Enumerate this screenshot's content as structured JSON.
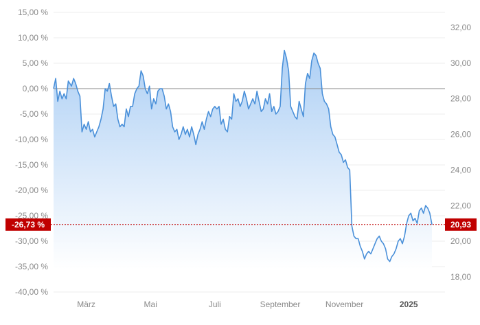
{
  "colors": {
    "line": "#4a90d9",
    "fill_top": "#a9cdf4",
    "fill_bottom": "#ffffff",
    "grid": "#ececec",
    "zero_line": "#888888",
    "current_marker": "#c00000",
    "badge_text": "#ffffff",
    "tick_text": "#8a8a8a"
  },
  "current": {
    "percent_label": "-26,73 %",
    "price_label": "20,93"
  },
  "chart_data": {
    "type": "area",
    "title": "",
    "xlabel": "",
    "ylabel_left": "",
    "ylabel_right": "",
    "y_left_range": [
      -40,
      15
    ],
    "y_right_range": [
      17.42,
      32.78
    ],
    "grid": true,
    "y_left_ticks": [
      {
        "value": 15,
        "label": "15,00 %"
      },
      {
        "value": 10,
        "label": "10,00 %"
      },
      {
        "value": 5,
        "label": "5,00 %"
      },
      {
        "value": 0,
        "label": "0,00 %"
      },
      {
        "value": -5,
        "label": "-5,00 %"
      },
      {
        "value": -10,
        "label": "-10,00 %"
      },
      {
        "value": -15,
        "label": "-15,00 %"
      },
      {
        "value": -20,
        "label": "-20,00 %"
      },
      {
        "value": -25,
        "label": "-25,00 %"
      },
      {
        "value": -30,
        "label": "-30,00 %"
      },
      {
        "value": -35,
        "label": "-35,00 %"
      },
      {
        "value": -40,
        "label": "-40,00 %"
      }
    ],
    "y_right_ticks": [
      {
        "value": 32,
        "label": "32,00"
      },
      {
        "value": 30,
        "label": "30,00"
      },
      {
        "value": 28,
        "label": "28,00"
      },
      {
        "value": 26,
        "label": "26,00"
      },
      {
        "value": 24,
        "label": "24,00"
      },
      {
        "value": 22,
        "label": "22,00"
      },
      {
        "value": 20,
        "label": "20,00"
      },
      {
        "value": 18,
        "label": "18,00"
      }
    ],
    "x_range": [
      "2024-01-30",
      "2025-01-23"
    ],
    "x_ticks": [
      {
        "date": "2024-03-01",
        "label": "März",
        "bold": false
      },
      {
        "date": "2024-05-01",
        "label": "Mai",
        "bold": false
      },
      {
        "date": "2024-07-01",
        "label": "Juli",
        "bold": false
      },
      {
        "date": "2024-09-01",
        "label": "September",
        "bold": false
      },
      {
        "date": "2024-11-01",
        "label": "November",
        "bold": false
      },
      {
        "date": "2025-01-01",
        "label": "2025",
        "bold": true
      }
    ],
    "series": [
      {
        "points": [
          [
            "2024-01-30",
            0.0
          ],
          [
            "2024-02-01",
            2.0
          ],
          [
            "2024-02-03",
            -2.5
          ],
          [
            "2024-02-05",
            -0.5
          ],
          [
            "2024-02-07",
            -2.0
          ],
          [
            "2024-02-09",
            -1.0
          ],
          [
            "2024-02-11",
            -2.0
          ],
          [
            "2024-02-13",
            1.5
          ],
          [
            "2024-02-16",
            0.5
          ],
          [
            "2024-02-18",
            2.0
          ],
          [
            "2024-02-20",
            1.0
          ],
          [
            "2024-02-22",
            -0.5
          ],
          [
            "2024-02-24",
            -1.5
          ],
          [
            "2024-02-26",
            -8.5
          ],
          [
            "2024-02-28",
            -7.0
          ],
          [
            "2024-03-01",
            -8.0
          ],
          [
            "2024-03-03",
            -6.5
          ],
          [
            "2024-03-05",
            -8.5
          ],
          [
            "2024-03-07",
            -8.0
          ],
          [
            "2024-03-09",
            -9.5
          ],
          [
            "2024-03-11",
            -8.5
          ],
          [
            "2024-03-13",
            -7.5
          ],
          [
            "2024-03-15",
            -6.0
          ],
          [
            "2024-03-17",
            -4.0
          ],
          [
            "2024-03-19",
            0.0
          ],
          [
            "2024-03-21",
            -0.5
          ],
          [
            "2024-03-23",
            1.0
          ],
          [
            "2024-03-25",
            -1.5
          ],
          [
            "2024-03-27",
            -3.5
          ],
          [
            "2024-03-29",
            -3.0
          ],
          [
            "2024-03-31",
            -6.0
          ],
          [
            "2024-04-02",
            -7.5
          ],
          [
            "2024-04-04",
            -7.0
          ],
          [
            "2024-04-06",
            -7.5
          ],
          [
            "2024-04-08",
            -4.0
          ],
          [
            "2024-04-10",
            -5.5
          ],
          [
            "2024-04-12",
            -3.5
          ],
          [
            "2024-04-14",
            -3.5
          ],
          [
            "2024-04-16",
            -1.0
          ],
          [
            "2024-04-18",
            0.0
          ],
          [
            "2024-04-20",
            0.5
          ],
          [
            "2024-04-22",
            3.5
          ],
          [
            "2024-04-24",
            2.5
          ],
          [
            "2024-04-26",
            0.0
          ],
          [
            "2024-04-28",
            -1.0
          ],
          [
            "2024-04-30",
            0.5
          ],
          [
            "2024-05-02",
            -4.0
          ],
          [
            "2024-05-04",
            -2.0
          ],
          [
            "2024-05-06",
            -3.0
          ],
          [
            "2024-05-08",
            -0.5
          ],
          [
            "2024-05-10",
            0.0
          ],
          [
            "2024-05-12",
            0.0
          ],
          [
            "2024-05-14",
            -1.5
          ],
          [
            "2024-05-16",
            -4.0
          ],
          [
            "2024-05-18",
            -3.0
          ],
          [
            "2024-05-20",
            -4.5
          ],
          [
            "2024-05-22",
            -7.5
          ],
          [
            "2024-05-24",
            -8.5
          ],
          [
            "2024-05-26",
            -8.0
          ],
          [
            "2024-05-28",
            -10.0
          ],
          [
            "2024-05-30",
            -9.0
          ],
          [
            "2024-06-01",
            -7.5
          ],
          [
            "2024-06-03",
            -9.0
          ],
          [
            "2024-06-05",
            -8.0
          ],
          [
            "2024-06-07",
            -9.5
          ],
          [
            "2024-06-09",
            -7.5
          ],
          [
            "2024-06-11",
            -9.0
          ],
          [
            "2024-06-13",
            -11.0
          ],
          [
            "2024-06-15",
            -9.0
          ],
          [
            "2024-06-17",
            -8.0
          ],
          [
            "2024-06-19",
            -6.5
          ],
          [
            "2024-06-21",
            -8.0
          ],
          [
            "2024-06-23",
            -6.0
          ],
          [
            "2024-06-25",
            -4.5
          ],
          [
            "2024-06-27",
            -5.5
          ],
          [
            "2024-06-29",
            -4.0
          ],
          [
            "2024-07-01",
            -3.5
          ],
          [
            "2024-07-03",
            -4.0
          ],
          [
            "2024-07-05",
            -3.5
          ],
          [
            "2024-07-07",
            -7.0
          ],
          [
            "2024-07-09",
            -6.0
          ],
          [
            "2024-07-11",
            -8.0
          ],
          [
            "2024-07-13",
            -8.5
          ],
          [
            "2024-07-15",
            -5.5
          ],
          [
            "2024-07-17",
            -6.0
          ],
          [
            "2024-07-19",
            -1.0
          ],
          [
            "2024-07-21",
            -2.5
          ],
          [
            "2024-07-23",
            -2.0
          ],
          [
            "2024-07-25",
            -3.5
          ],
          [
            "2024-07-27",
            -2.5
          ],
          [
            "2024-07-29",
            -0.5
          ],
          [
            "2024-07-31",
            -2.0
          ],
          [
            "2024-08-02",
            -4.0
          ],
          [
            "2024-08-04",
            -3.0
          ],
          [
            "2024-08-06",
            -2.0
          ],
          [
            "2024-08-08",
            -3.0
          ],
          [
            "2024-08-10",
            -0.5
          ],
          [
            "2024-08-12",
            -2.5
          ],
          [
            "2024-08-14",
            -4.5
          ],
          [
            "2024-08-16",
            -4.0
          ],
          [
            "2024-08-18",
            -2.0
          ],
          [
            "2024-08-20",
            -3.0
          ],
          [
            "2024-08-22",
            -1.0
          ],
          [
            "2024-08-24",
            -4.5
          ],
          [
            "2024-08-26",
            -3.5
          ],
          [
            "2024-08-28",
            -5.0
          ],
          [
            "2024-08-30",
            -4.5
          ],
          [
            "2024-09-01",
            -3.5
          ],
          [
            "2024-09-03",
            4.0
          ],
          [
            "2024-09-05",
            7.5
          ],
          [
            "2024-09-07",
            6.0
          ],
          [
            "2024-09-09",
            3.5
          ],
          [
            "2024-09-11",
            -3.5
          ],
          [
            "2024-09-13",
            -4.5
          ],
          [
            "2024-09-15",
            -5.5
          ],
          [
            "2024-09-17",
            -6.0
          ],
          [
            "2024-09-19",
            -2.5
          ],
          [
            "2024-09-21",
            -4.0
          ],
          [
            "2024-09-23",
            -5.5
          ],
          [
            "2024-09-25",
            1.0
          ],
          [
            "2024-09-27",
            3.0
          ],
          [
            "2024-09-29",
            2.0
          ],
          [
            "2024-10-01",
            5.5
          ],
          [
            "2024-10-03",
            7.0
          ],
          [
            "2024-10-05",
            6.5
          ],
          [
            "2024-10-07",
            5.0
          ],
          [
            "2024-10-09",
            4.0
          ],
          [
            "2024-10-11",
            -1.0
          ],
          [
            "2024-10-13",
            -2.5
          ],
          [
            "2024-10-15",
            -3.0
          ],
          [
            "2024-10-17",
            -4.0
          ],
          [
            "2024-10-19",
            -7.5
          ],
          [
            "2024-10-21",
            -9.0
          ],
          [
            "2024-10-23",
            -9.5
          ],
          [
            "2024-10-25",
            -11.0
          ],
          [
            "2024-10-27",
            -12.5
          ],
          [
            "2024-10-29",
            -13.0
          ],
          [
            "2024-10-31",
            -14.5
          ],
          [
            "2024-11-02",
            -14.0
          ],
          [
            "2024-11-04",
            -15.5
          ],
          [
            "2024-11-06",
            -16.0
          ],
          [
            "2024-11-08",
            -27.0
          ],
          [
            "2024-11-10",
            -29.0
          ],
          [
            "2024-11-12",
            -29.5
          ],
          [
            "2024-11-14",
            -29.5
          ],
          [
            "2024-11-16",
            -31.0
          ],
          [
            "2024-11-18",
            -32.0
          ],
          [
            "2024-11-20",
            -33.5
          ],
          [
            "2024-11-22",
            -32.5
          ],
          [
            "2024-11-24",
            -32.0
          ],
          [
            "2024-11-26",
            -32.5
          ],
          [
            "2024-11-28",
            -31.5
          ],
          [
            "2024-11-30",
            -30.5
          ],
          [
            "2024-12-02",
            -29.5
          ],
          [
            "2024-12-04",
            -29.0
          ],
          [
            "2024-12-06",
            -30.0
          ],
          [
            "2024-12-08",
            -30.5
          ],
          [
            "2024-12-10",
            -31.5
          ],
          [
            "2024-12-12",
            -33.5
          ],
          [
            "2024-12-14",
            -34.0
          ],
          [
            "2024-12-16",
            -33.0
          ],
          [
            "2024-12-18",
            -32.5
          ],
          [
            "2024-12-20",
            -31.5
          ],
          [
            "2024-12-22",
            -30.0
          ],
          [
            "2024-12-24",
            -29.5
          ],
          [
            "2024-12-26",
            -30.5
          ],
          [
            "2024-12-28",
            -29.0
          ],
          [
            "2024-12-30",
            -26.5
          ],
          [
            "2025-01-01",
            -25.0
          ],
          [
            "2025-01-03",
            -24.5
          ],
          [
            "2025-01-05",
            -26.0
          ],
          [
            "2025-01-07",
            -25.5
          ],
          [
            "2025-01-09",
            -26.5
          ],
          [
            "2025-01-11",
            -24.0
          ],
          [
            "2025-01-13",
            -23.5
          ],
          [
            "2025-01-15",
            -24.5
          ],
          [
            "2025-01-17",
            -23.0
          ],
          [
            "2025-01-19",
            -23.5
          ],
          [
            "2025-01-21",
            -24.5
          ],
          [
            "2025-01-23",
            -26.73
          ]
        ]
      }
    ]
  }
}
